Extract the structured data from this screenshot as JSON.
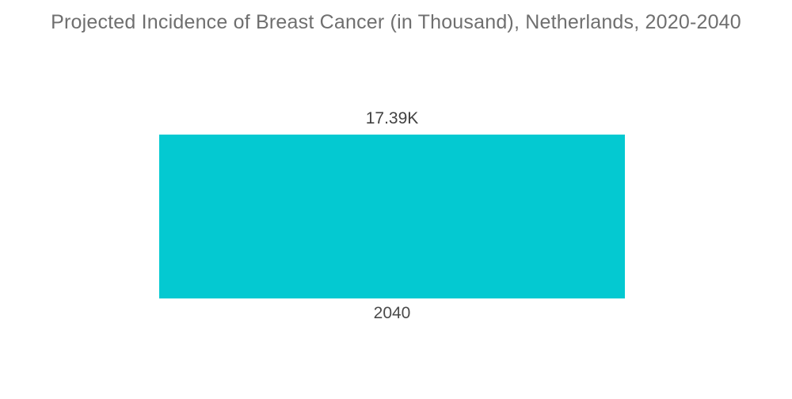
{
  "chart_data": {
    "type": "bar",
    "title": "Projected Incidence of Breast Cancer (in Thousand), Netherlands, 2020-2040",
    "categories": [
      "2040"
    ],
    "values": [
      17.39
    ],
    "value_labels": [
      "17.39K"
    ],
    "unit": "Thousand",
    "xlabel": "",
    "ylabel": "",
    "ylim": [
      0,
      17.39
    ],
    "grid": false,
    "legend_position": "none",
    "axis_lines": false,
    "bar_color": "#04c9d1",
    "title_color": "#6f6f6f",
    "value_label_color": "#424242",
    "tick_label_color": "#4a4a4a",
    "background_color": "#ffffff"
  }
}
